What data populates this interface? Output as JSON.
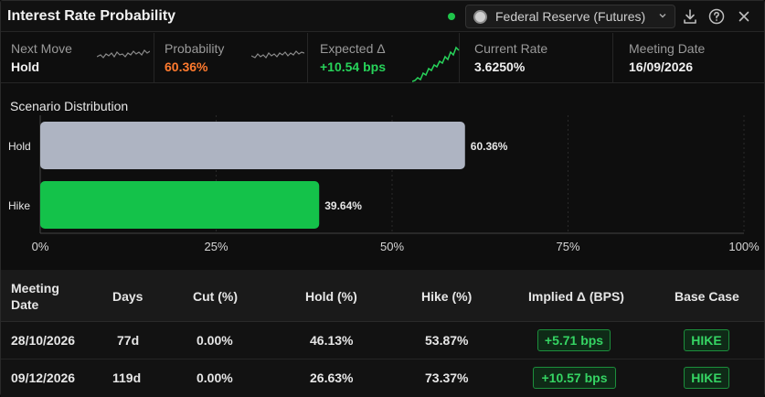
{
  "header": {
    "title": "Interest Rate Probability",
    "source": "Federal Reserve (Futures)"
  },
  "stats": [
    {
      "label": "Next Move",
      "value": "Hold",
      "value_color": "#f0f0f0"
    },
    {
      "label": "Probability",
      "value": "60.36%",
      "value_color": "#ff7a2e"
    },
    {
      "label": "Expected Δ",
      "value": "+10.54 bps",
      "value_color": "#27d35a"
    },
    {
      "label": "Current Rate",
      "value": "3.6250%",
      "value_color": "#f0f0f0"
    },
    {
      "label": "Meeting Date",
      "value": "16/09/2026",
      "value_color": "#f0f0f0"
    }
  ],
  "chart_data": {
    "type": "bar",
    "orientation": "horizontal",
    "title": "Scenario Distribution",
    "categories": [
      "Hold",
      "Hike"
    ],
    "values": [
      60.36,
      39.64
    ],
    "value_labels": [
      "60.36%",
      "39.64%"
    ],
    "colors": [
      "#aeb4c2",
      "#14c24a"
    ],
    "xlim": [
      0,
      100
    ],
    "x_ticks": [
      0,
      25,
      50,
      75,
      100
    ],
    "x_tick_labels": [
      "0%",
      "25%",
      "50%",
      "75%",
      "100%"
    ],
    "grid": true
  },
  "table": {
    "columns": [
      "Meeting Date",
      "Days",
      "Cut (%)",
      "Hold (%)",
      "Hike (%)",
      "Implied Δ (BPS)",
      "Base Case"
    ],
    "rows": [
      {
        "date": "28/10/2026",
        "days": "77d",
        "cut": "0.00%",
        "hold": "46.13%",
        "hike": "53.87%",
        "implied": "+5.71 bps",
        "base": "HIKE"
      },
      {
        "date": "09/12/2026",
        "days": "119d",
        "cut": "0.00%",
        "hold": "26.63%",
        "hike": "73.37%",
        "implied": "+10.57 bps",
        "base": "HIKE"
      }
    ]
  }
}
